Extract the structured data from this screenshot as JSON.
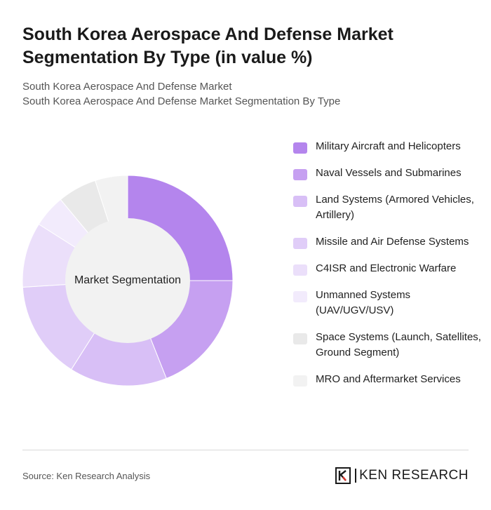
{
  "title": "South Korea Aerospace And Defense Market Segmentation By Type (in value %)",
  "subtitle_line1": "South Korea Aerospace And Defense Market",
  "subtitle_line2": "South Korea Aerospace And Defense Market Segmentation By Type",
  "chart_data": {
    "type": "pie",
    "donut": true,
    "center_label": "Market Segmentation",
    "legend_position": "right",
    "categories": [
      "Military Aircraft and Helicopters",
      "Naval Vessels and Submarines",
      "Land Systems (Armored Vehicles, Artillery)",
      "Missile and Air Defense Systems",
      "C4ISR and Electronic Warfare",
      "Unmanned Systems (UAV/UGV/USV)",
      "Space Systems (Launch, Satellites, Ground Segment)",
      "MRO and Aftermarket Services"
    ],
    "values": [
      25,
      19,
      15,
      15,
      10,
      5,
      6,
      5
    ],
    "colors": [
      "#b485ed",
      "#c6a0f1",
      "#d8bff6",
      "#e0cdf8",
      "#ebdffa",
      "#f2ebfc",
      "#e9e9e9",
      "#f2f2f2"
    ]
  },
  "source": "Source: Ken Research Analysis",
  "brand": {
    "name": "KEN RESEARCH",
    "logo_letter": "K"
  }
}
